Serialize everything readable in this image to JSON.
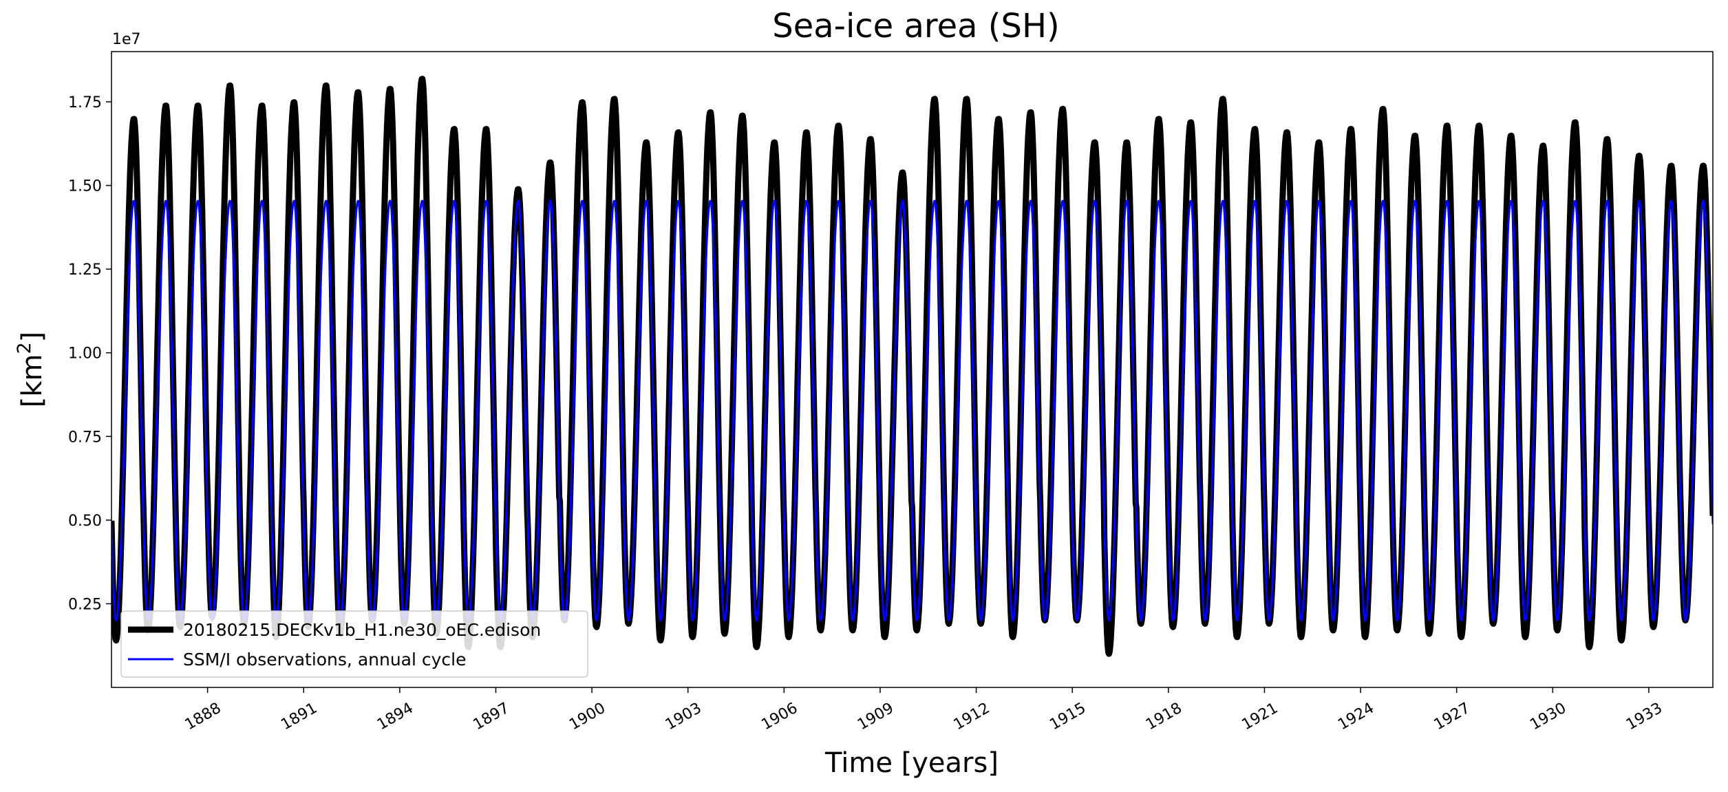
{
  "chart_data": {
    "type": "line",
    "title": "Sea-ice area (SH)",
    "xlabel": "Time [years]",
    "ylabel_main": "[km",
    "ylabel_sup": "2",
    "ylabel_close": "]",
    "y_offset_label": "1e7",
    "xlim": [
      1885.0,
      1935.0
    ],
    "ylim": [
      0.0,
      1.9
    ],
    "x_ticks": [
      1888,
      1891,
      1894,
      1897,
      1900,
      1903,
      1906,
      1909,
      1912,
      1915,
      1918,
      1921,
      1924,
      1927,
      1930,
      1933
    ],
    "x_tick_labels": [
      "1888",
      "1891",
      "1894",
      "1897",
      "1900",
      "1903",
      "1906",
      "1909",
      "1912",
      "1915",
      "1918",
      "1921",
      "1924",
      "1927",
      "1930",
      "1933"
    ],
    "y_ticks": [
      0.25,
      0.5,
      0.75,
      1.0,
      1.25,
      1.5,
      1.75
    ],
    "y_tick_labels": [
      "0.25",
      "0.50",
      "0.75",
      "1.00",
      "1.25",
      "1.50",
      "1.75"
    ],
    "start_year": 1885,
    "series": [
      {
        "name": "20180215.DECKv1b_H1.ne30_oEC.edison",
        "color": "#000000",
        "annual_max": [
          1.7,
          1.74,
          1.74,
          1.8,
          1.74,
          1.75,
          1.8,
          1.78,
          1.79,
          1.82,
          1.67,
          1.67,
          1.49,
          1.57,
          1.75,
          1.76,
          1.63,
          1.66,
          1.72,
          1.71,
          1.63,
          1.66,
          1.68,
          1.64,
          1.54,
          1.76,
          1.76,
          1.7,
          1.72,
          1.73,
          1.63,
          1.63,
          1.7,
          1.69,
          1.76,
          1.67,
          1.66,
          1.63,
          1.67,
          1.73,
          1.65,
          1.68,
          1.68,
          1.65,
          1.62,
          1.69,
          1.64,
          1.59,
          1.56,
          1.56
        ],
        "annual_min": [
          0.14,
          0.17,
          0.18,
          0.21,
          0.19,
          0.15,
          0.18,
          0.16,
          0.2,
          0.19,
          0.16,
          0.12,
          0.12,
          0.15,
          0.2,
          0.18,
          0.19,
          0.14,
          0.15,
          0.16,
          0.12,
          0.15,
          0.17,
          0.17,
          0.15,
          0.17,
          0.19,
          0.19,
          0.15,
          0.2,
          0.2,
          0.1,
          0.19,
          0.18,
          0.19,
          0.15,
          0.19,
          0.15,
          0.17,
          0.15,
          0.17,
          0.16,
          0.15,
          0.19,
          0.15,
          0.17,
          0.12,
          0.14,
          0.18,
          0.2
        ]
      },
      {
        "name": "SSM/I observations, annual cycle",
        "color": "#0000ff",
        "annual_max_value": 1.455,
        "annual_min_value": 0.2
      }
    ]
  }
}
